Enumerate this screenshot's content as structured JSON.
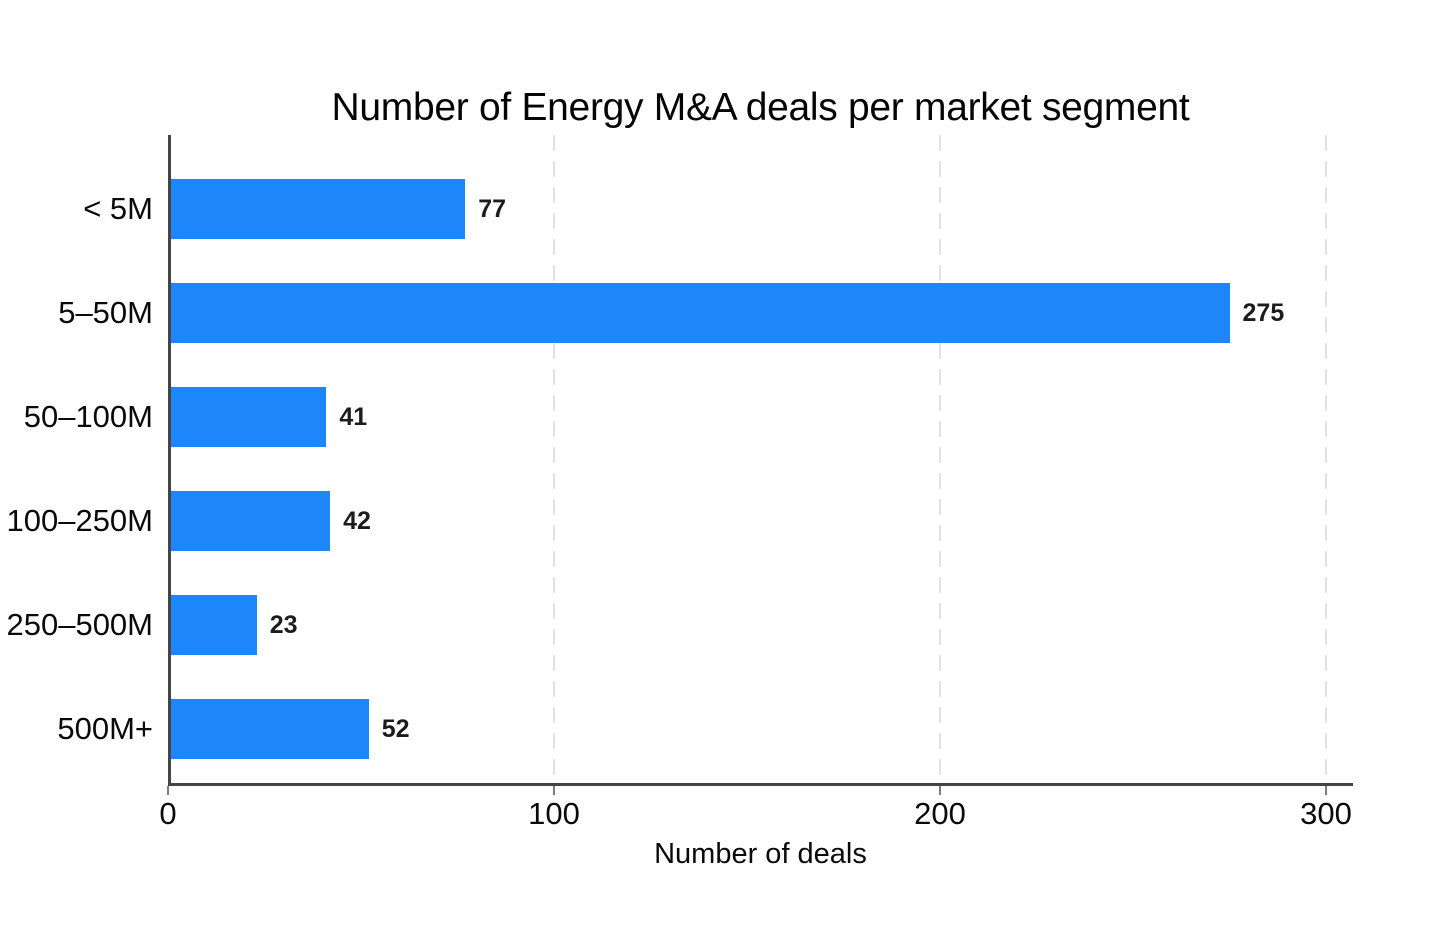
{
  "page": {
    "background": "#ffffff"
  },
  "chart_data": {
    "type": "bar",
    "orientation": "horizontal",
    "title": "Number of Energy M&A deals per market segment",
    "categories": [
      "< 5M",
      "5–50M",
      "50–100M",
      "100–250M",
      "250–500M",
      "500M+"
    ],
    "values": [
      77,
      275,
      41,
      42,
      23,
      52
    ],
    "xlabel": "Number of deals",
    "ylabel": "",
    "xlim": [
      0,
      307
    ],
    "xticks": [
      0,
      100,
      200,
      300
    ],
    "grid": "vertical-dashed-at-ticks",
    "legend": "none",
    "value_labels_shown": true,
    "bar_color": "#1e86fb",
    "axis_color": "#454545",
    "tick_color": "#7d7d7d",
    "gridline_color": "#e2e2e2",
    "text_color": "#0a0a0a"
  }
}
